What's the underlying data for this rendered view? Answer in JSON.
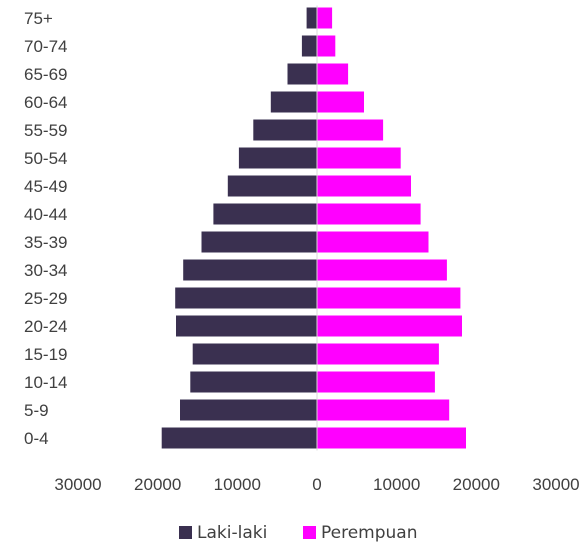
{
  "chart_data": {
    "type": "bar",
    "orientation": "horizontal",
    "layout": "population-pyramid",
    "categories": [
      "75+",
      "70-74",
      "65-69",
      "60-64",
      "55-59",
      "50-54",
      "45-49",
      "40-44",
      "35-39",
      "30-34",
      "25-29",
      "20-24",
      "15-19",
      "10-14",
      "5-9",
      "0-4"
    ],
    "series": [
      {
        "name": "Laki-laki",
        "color": "#3a3050",
        "side": "left",
        "values": [
          1300,
          1900,
          3700,
          5800,
          8000,
          9800,
          11200,
          13000,
          14500,
          16800,
          17800,
          17700,
          15600,
          15900,
          17200,
          19500
        ]
      },
      {
        "name": "Perempuan",
        "color": "#ff00ff",
        "side": "right",
        "values": [
          1900,
          2300,
          3900,
          5900,
          8300,
          10500,
          11800,
          13000,
          14000,
          16300,
          18000,
          18200,
          15300,
          14800,
          16600,
          18700
        ]
      }
    ],
    "xlim": [
      -30000,
      30000
    ],
    "x_ticks": [
      -30000,
      -20000,
      -10000,
      0,
      10000,
      20000,
      30000
    ],
    "x_tick_labels": [
      "30000",
      "20000",
      "10000",
      "0",
      "10000",
      "20000",
      "30000"
    ],
    "title": "",
    "xlabel": "",
    "ylabel": "",
    "grid": false,
    "legend_position": "bottom"
  }
}
